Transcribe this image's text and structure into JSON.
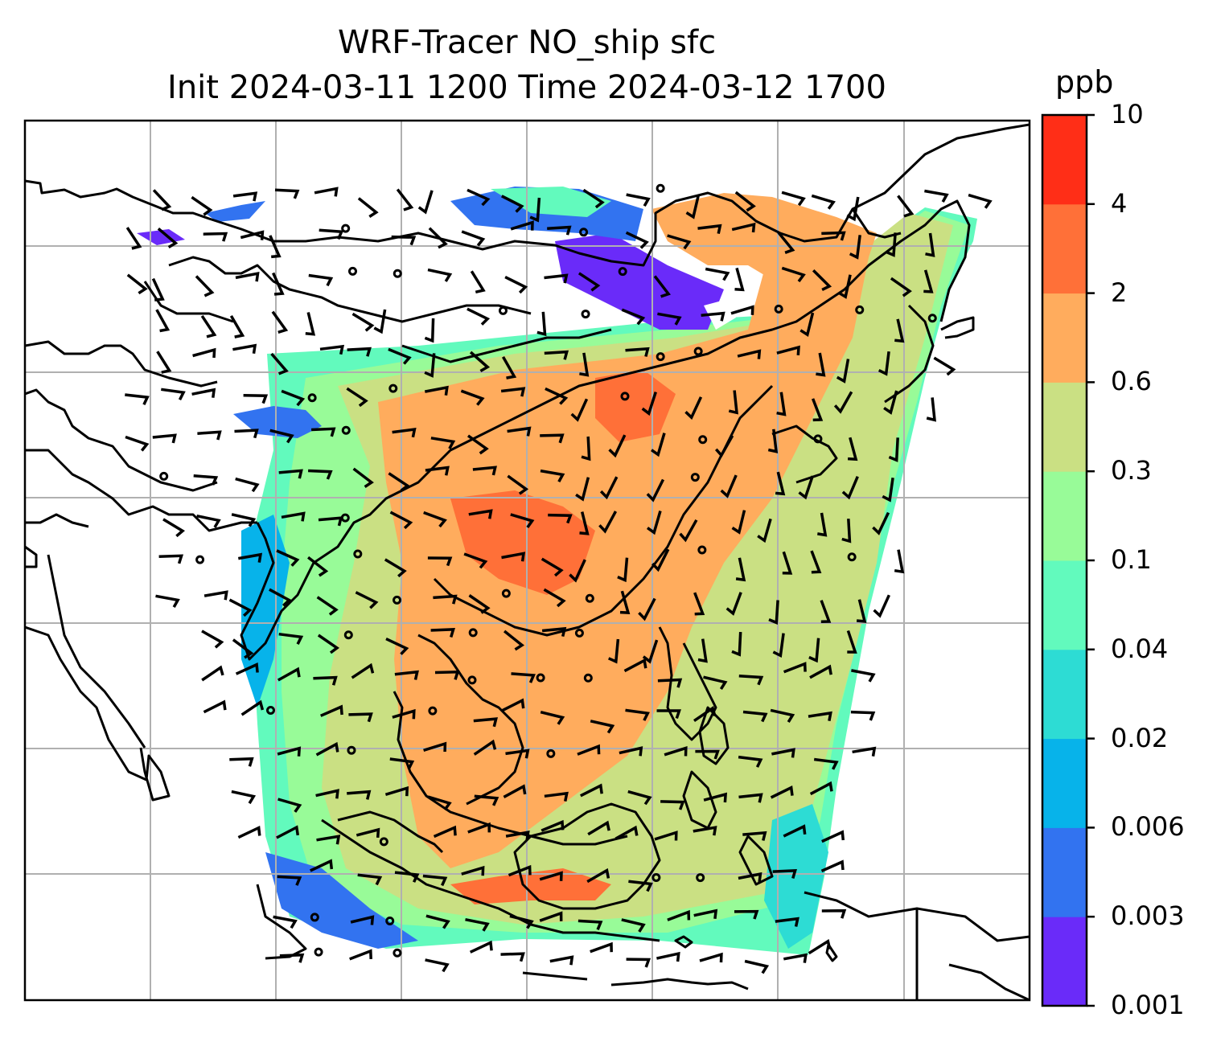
{
  "title_line1": "WRF-Tracer NO_ship sfc",
  "title_line2": "Init 2024-03-11 1200 Time 2024-03-12 1700",
  "colorbar": {
    "unit": "ppb",
    "levels": [
      "0.001",
      "0.003",
      "0.006",
      "0.02",
      "0.04",
      "0.1",
      "0.3",
      "0.6",
      "2",
      "4",
      "10"
    ],
    "colors": [
      "#6a2bf9",
      "#3273f0",
      "#07b3ea",
      "#2ddcd4",
      "#62fabd",
      "#98fb98",
      "#cae083",
      "#ffac5d",
      "#ff7038",
      "#ff2e17"
    ]
  },
  "map": {
    "variable": "NO_ship surface concentration",
    "overlay": "wind barbs",
    "gridlines": true,
    "coastlines": true
  }
}
